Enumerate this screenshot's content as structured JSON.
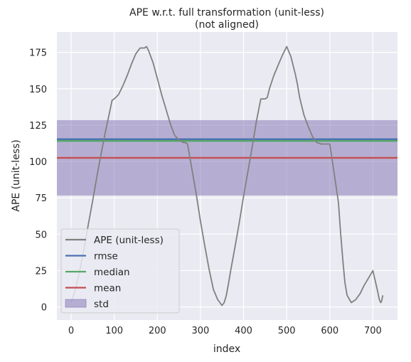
{
  "chart_data": {
    "type": "line",
    "title": "APE w.r.t. full transformation (unit-less)",
    "subtitle": "(not aligned)",
    "xlabel": "index",
    "ylabel": "APE (unit-less)",
    "xlim": [
      -33,
      757
    ],
    "ylim": [
      -9,
      189
    ],
    "xticks": [
      0,
      100,
      200,
      300,
      400,
      500,
      600,
      700
    ],
    "yticks": [
      0,
      25,
      50,
      75,
      100,
      125,
      150,
      175
    ],
    "grid": true,
    "legend_position": "bottom-left",
    "legend": [
      {
        "label": "APE (unit-less)",
        "kind": "line",
        "color": "#808080"
      },
      {
        "label": "rmse",
        "kind": "line",
        "color": "#4c72b0"
      },
      {
        "label": "median",
        "kind": "line",
        "color": "#55a868"
      },
      {
        "label": "mean",
        "kind": "line",
        "color": "#c44e52"
      },
      {
        "label": "std",
        "kind": "patch",
        "color": "#8172b2"
      }
    ],
    "series": [
      {
        "name": "APE (unit-less)",
        "color": "#808080",
        "x": [
          0,
          10,
          20,
          30,
          40,
          50,
          60,
          70,
          80,
          90,
          95,
          100,
          110,
          120,
          130,
          140,
          150,
          160,
          170,
          175,
          180,
          190,
          200,
          210,
          220,
          230,
          240,
          250,
          260,
          265,
          270,
          280,
          290,
          300,
          310,
          320,
          330,
          340,
          350,
          355,
          360,
          365,
          370,
          380,
          390,
          400,
          410,
          420,
          430,
          440,
          450,
          455,
          460,
          470,
          480,
          490,
          500,
          510,
          520,
          525,
          530,
          540,
          550,
          560,
          570,
          580,
          590,
          600,
          610,
          620,
          625,
          630,
          635,
          640,
          650,
          660,
          670,
          680,
          690,
          700,
          710,
          715,
          718,
          720,
          723
        ],
        "y": [
          3,
          12,
          25,
          40,
          57,
          73,
          90,
          106,
          121,
          135,
          142,
          143,
          146,
          152,
          159,
          167,
          174,
          178,
          178,
          179,
          176,
          168,
          157,
          146,
          136,
          126,
          118,
          115,
          113,
          113,
          112,
          95,
          78,
          59,
          42,
          26,
          12,
          5,
          1,
          3,
          8,
          16,
          25,
          41,
          58,
          76,
          93,
          110,
          128,
          143,
          143,
          144,
          150,
          159,
          166,
          173,
          179,
          172,
          160,
          153,
          144,
          132,
          124,
          117,
          113,
          112,
          112,
          112,
          92,
          72,
          51,
          33,
          17,
          8,
          3,
          5,
          9,
          15,
          20,
          25,
          12,
          5,
          3,
          4,
          8
        ]
      }
    ],
    "hlines": [
      {
        "name": "rmse",
        "value": 115.3,
        "color": "#4c72b0"
      },
      {
        "name": "median",
        "value": 114.1,
        "color": "#55a868"
      },
      {
        "name": "mean",
        "value": 102.5,
        "color": "#c44e52"
      }
    ],
    "bands": [
      {
        "name": "std",
        "from": 76.6,
        "to": 128.4,
        "color": "#8172b2",
        "opacity": 0.5
      }
    ]
  }
}
